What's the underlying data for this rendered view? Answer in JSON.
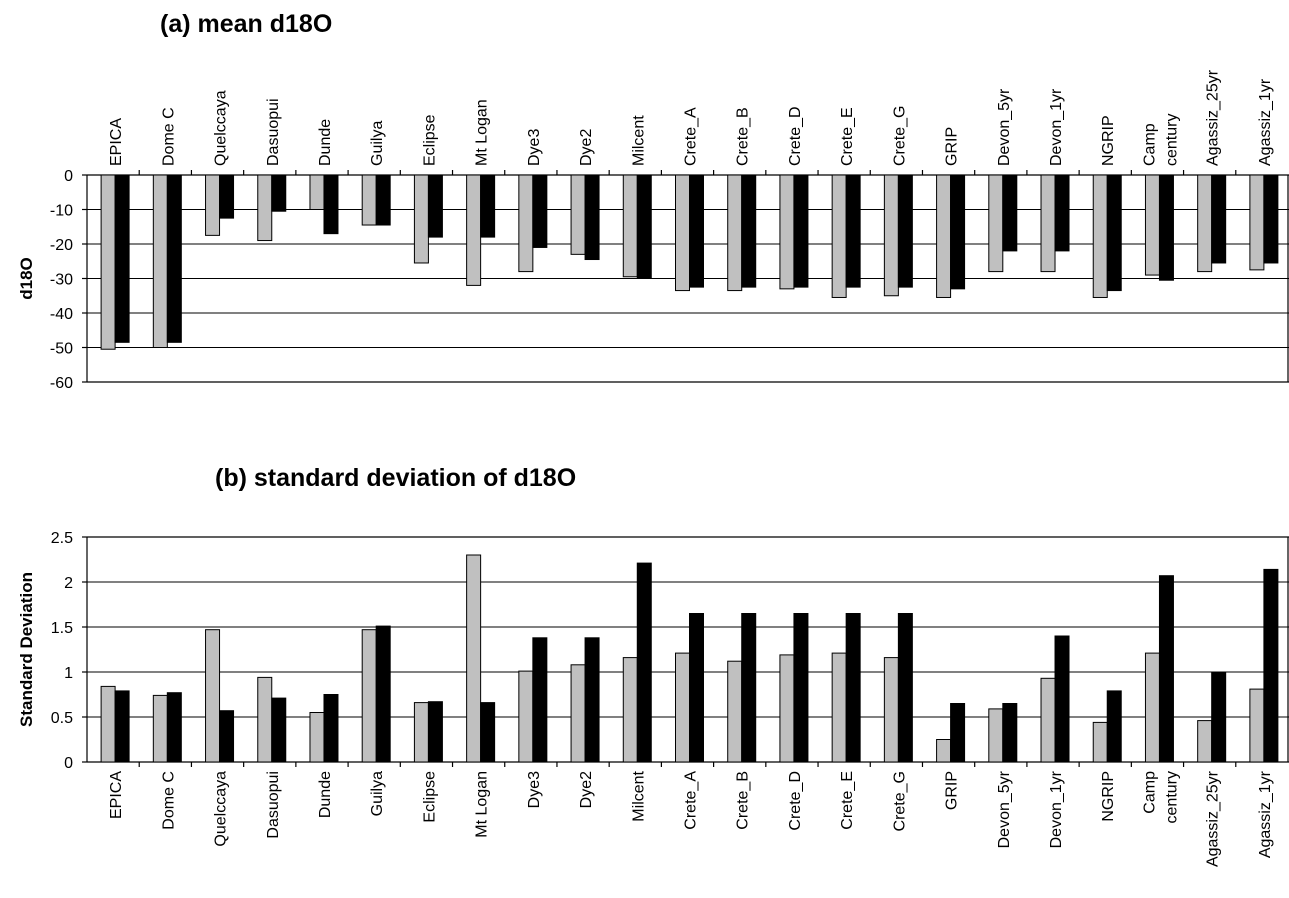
{
  "chart_data": [
    {
      "type": "bar",
      "title": "(a) mean d18O",
      "ylabel": "d18O",
      "ylim": [
        -60,
        0
      ],
      "yticks": [
        0,
        -10,
        -20,
        -30,
        -40,
        -50,
        -60
      ],
      "grid": true,
      "categories": [
        "EPICA",
        "Dome C",
        "Quelccaya",
        "Dasuopui",
        "Dunde",
        "Guilya",
        "Eclipse",
        "Mt Logan",
        "Dye3",
        "Dye2",
        "Milcent",
        "Crete_A",
        "Crete_B",
        "Crete_D",
        "Crete_E",
        "Crete_G",
        "GRIP",
        "Devon_5yr",
        "Devon_1yr",
        "NGRIP",
        "Camp century",
        "Agassiz_25yr",
        "Agassiz_1yr"
      ],
      "series": [
        {
          "color": "#c0c0c0",
          "values": [
            -50.5,
            -50,
            -17.5,
            -19,
            -10,
            -14.5,
            -25.5,
            -32,
            -28,
            -23,
            -29.5,
            -33.5,
            -33.5,
            -33,
            -35.5,
            -35,
            -35.5,
            -28,
            -28,
            -35.5,
            -29,
            -28,
            -27.5
          ]
        },
        {
          "color": "#000000",
          "values": [
            -48.5,
            -48.5,
            -12.5,
            -10.5,
            -17,
            -14.5,
            -18,
            -18,
            -21,
            -24.5,
            -30,
            -32.5,
            -32.5,
            -32.5,
            -32.5,
            -32.5,
            -33,
            -22,
            -22,
            -33.5,
            -30.5,
            -25.5,
            -25.5
          ]
        }
      ]
    },
    {
      "type": "bar",
      "title": "(b) standard deviation of d18O",
      "ylabel": "Standard Deviation",
      "ylim": [
        0,
        2.5
      ],
      "yticks": [
        2.5,
        2,
        1.5,
        1,
        0.5,
        0
      ],
      "grid": true,
      "categories": [
        "EPICA",
        "Dome C",
        "Quelccaya",
        "Dasuopui",
        "Dunde",
        "Guilya",
        "Eclipse",
        "Mt Logan",
        "Dye3",
        "Dye2",
        "Milcent",
        "Crete_A",
        "Crete_B",
        "Crete_D",
        "Crete_E",
        "Crete_G",
        "GRIP",
        "Devon_5yr",
        "Devon_1yr",
        "NGRIP",
        "Camp century",
        "Agassiz_25yr",
        "Agassiz_1yr"
      ],
      "series": [
        {
          "color": "#c0c0c0",
          "values": [
            0.84,
            0.74,
            1.47,
            0.94,
            0.55,
            1.47,
            0.66,
            2.3,
            1.01,
            1.08,
            1.16,
            1.21,
            1.12,
            1.19,
            1.21,
            1.16,
            0.25,
            0.59,
            0.93,
            0.44,
            1.21,
            0.46,
            0.81
          ]
        },
        {
          "color": "#000000",
          "values": [
            0.79,
            0.77,
            0.57,
            0.71,
            0.75,
            1.51,
            0.67,
            0.66,
            1.38,
            1.38,
            2.21,
            1.65,
            1.65,
            1.65,
            1.65,
            1.65,
            0.65,
            0.65,
            1.4,
            0.79,
            2.07,
            1.0,
            2.14
          ]
        }
      ]
    }
  ]
}
